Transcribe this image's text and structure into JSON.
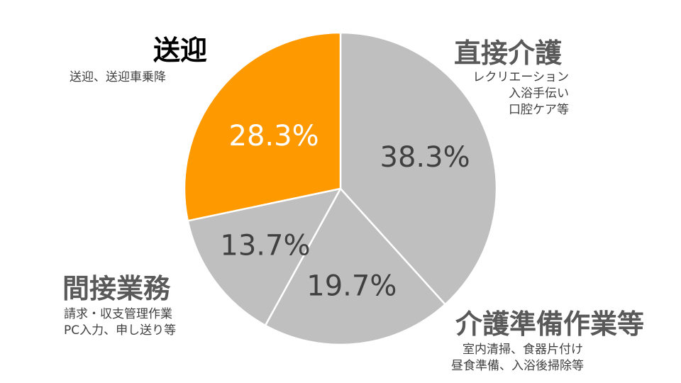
{
  "chart_data": {
    "type": "pie",
    "colors": {
      "highlight": "#ff9900",
      "default": "#bfbfbf",
      "border": "#ffffff",
      "percent_text_dark": "#404040",
      "percent_text_light": "#ffffff",
      "highlight_label": "#000000",
      "default_label": "#595959"
    },
    "slices": [
      {
        "label": "直接介護",
        "value": 38.3,
        "value_label": "38.3%",
        "color": "#bfbfbf",
        "details": [
          "レクリエーション",
          "入浴手伝い",
          "口腔ケア等"
        ]
      },
      {
        "label": "介護準備作業等",
        "value": 19.7,
        "value_label": "19.7%",
        "color": "#bfbfbf",
        "details": [
          "室内清掃、食器片付け",
          "昼食準備、入浴後掃除等"
        ]
      },
      {
        "label": "間接業務",
        "value": 13.7,
        "value_label": "13.7%",
        "color": "#bfbfbf",
        "details": [
          "請求・収支管理作業",
          "PC入力、申し送り等"
        ]
      },
      {
        "label": "送迎",
        "value": 28.3,
        "value_label": "28.3%",
        "color": "#ff9900",
        "details": [
          "送迎、送迎車乗降"
        ]
      }
    ],
    "start_angle": "12 o'clock",
    "direction": "clockwise",
    "highlighted_slice": "送迎"
  }
}
